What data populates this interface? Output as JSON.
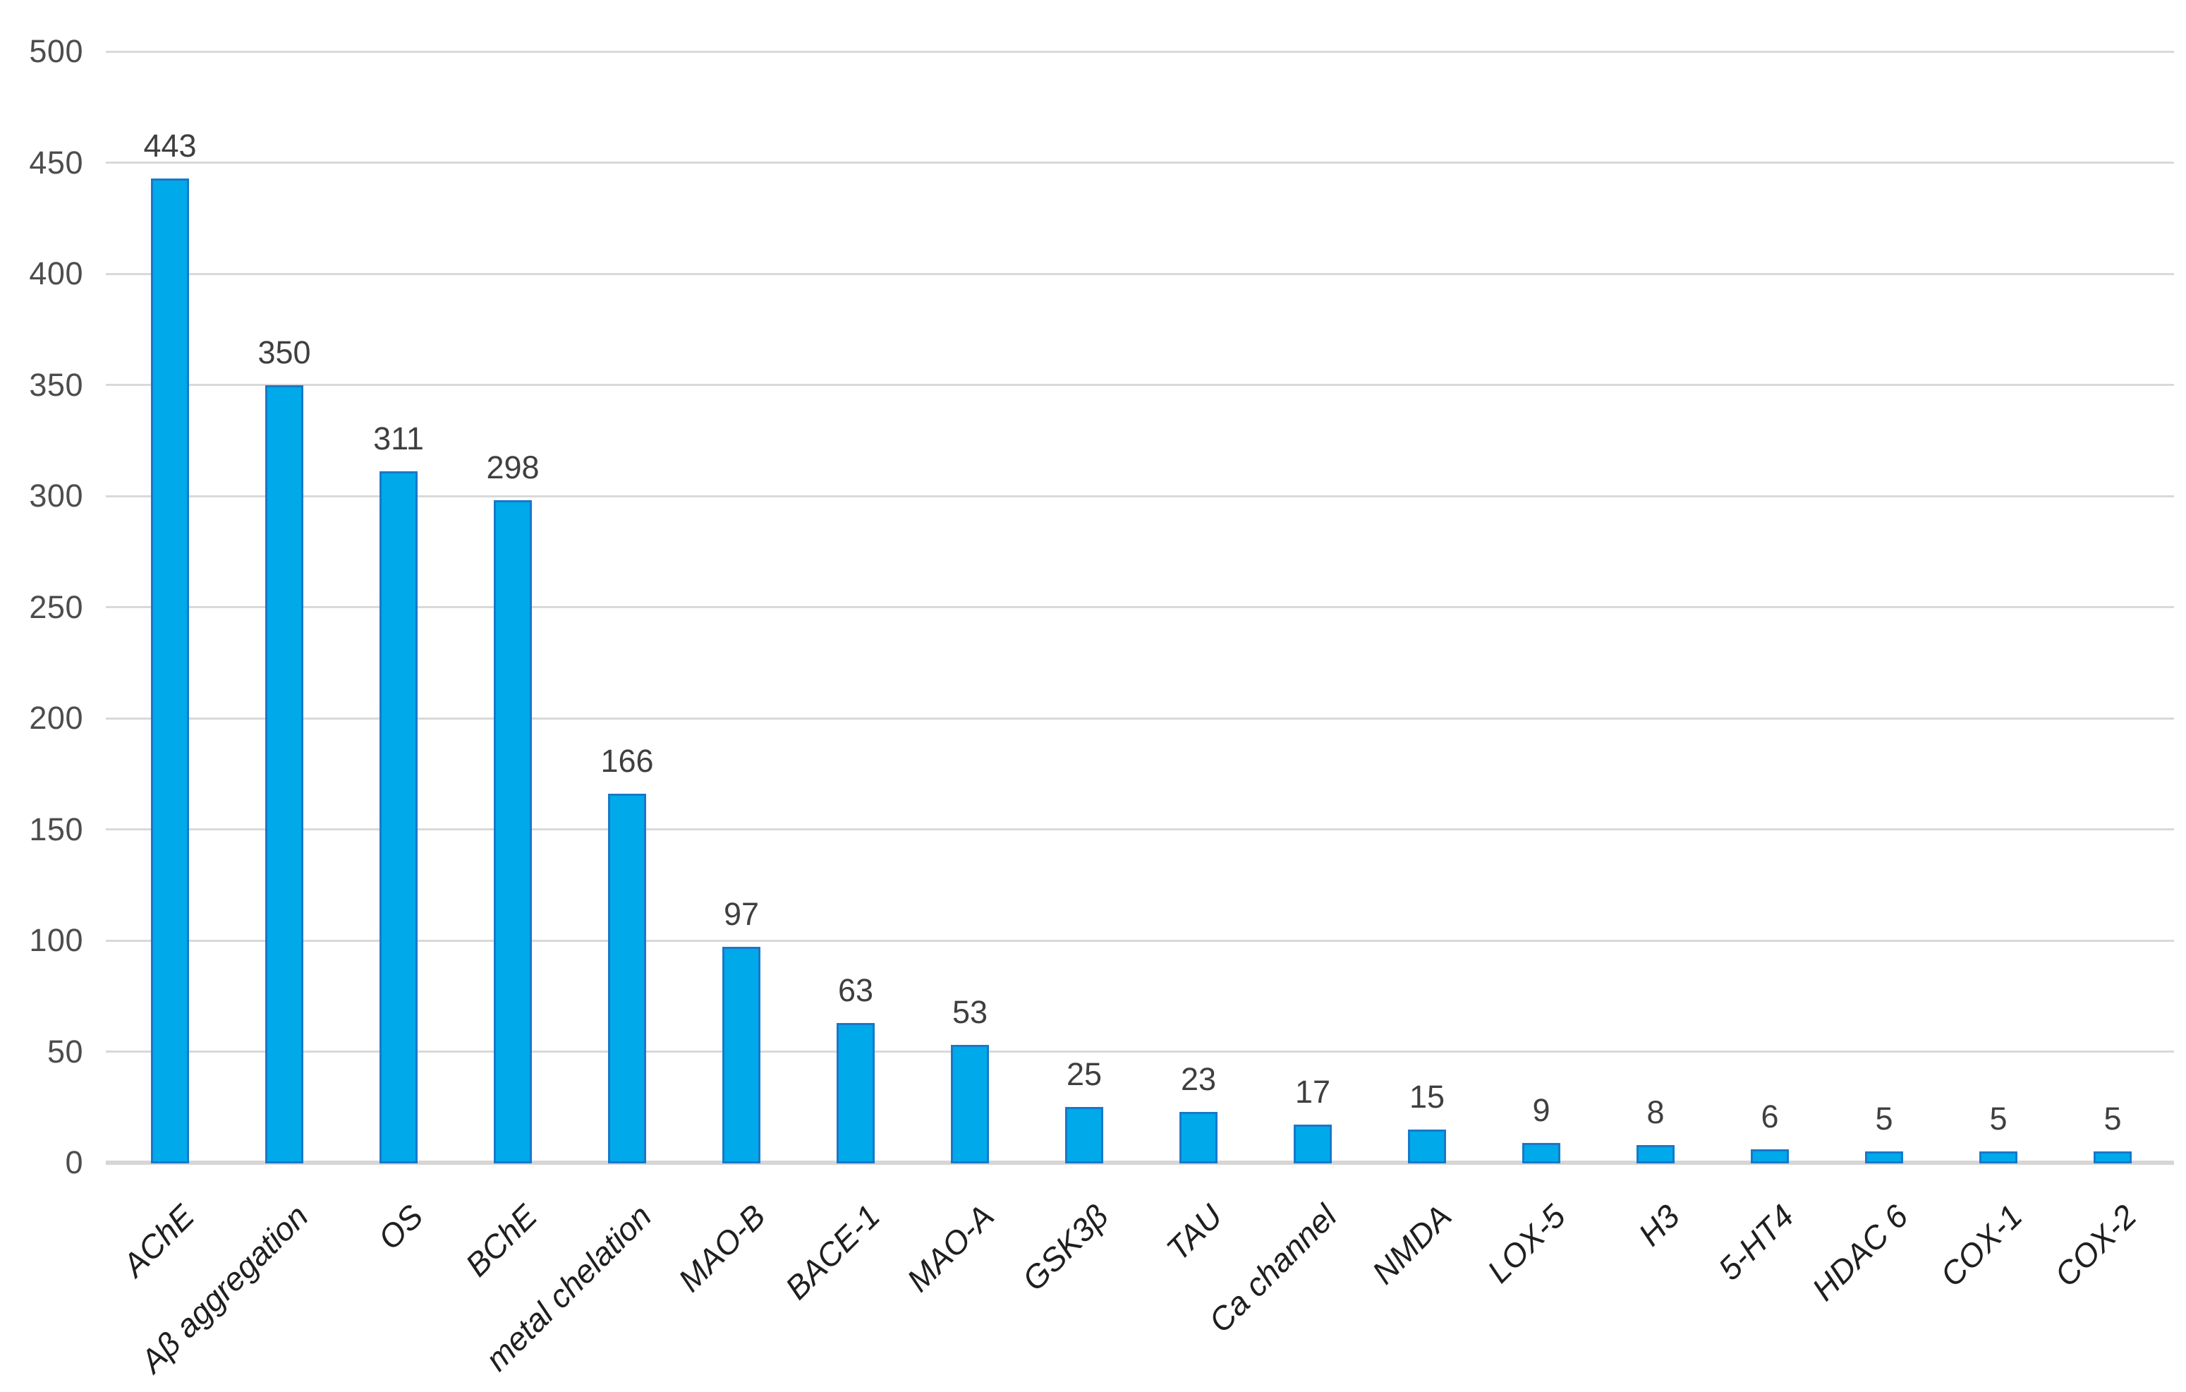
{
  "chart_data": {
    "type": "bar",
    "title": "",
    "xlabel": "",
    "ylabel": "",
    "categories": [
      "AChE",
      "Aβ aggregation",
      "OS",
      "BChE",
      "metal chelation",
      "MAO-B",
      "BACE-1",
      "MAO-A",
      "GSK3β",
      "TAU",
      "Ca channel",
      "NMDA",
      "LOX-5",
      "H3",
      "5-HT4",
      "HDAC 6",
      "COX-1",
      "COX-2"
    ],
    "values": [
      443,
      350,
      311,
      298,
      166,
      97,
      63,
      53,
      25,
      23,
      17,
      15,
      9,
      8,
      6,
      5,
      5,
      5
    ],
    "show_data_labels": true,
    "ylim": [
      0,
      500
    ],
    "ytick_step": 50,
    "y_ticks": [
      0,
      50,
      100,
      150,
      200,
      250,
      300,
      350,
      400,
      450,
      500
    ],
    "grid": true,
    "legend": false,
    "styles": {
      "bar_fill": "#00A9EA",
      "bar_border": "#1779C8",
      "gridline": "#D9D9D9",
      "axis_line": "#D6D6D6",
      "tick_label_color": "#4D4D4D",
      "data_label_color": "#3F3F3F",
      "category_label_color": "#1F1F1F",
      "background": "#FFFFFF"
    }
  }
}
